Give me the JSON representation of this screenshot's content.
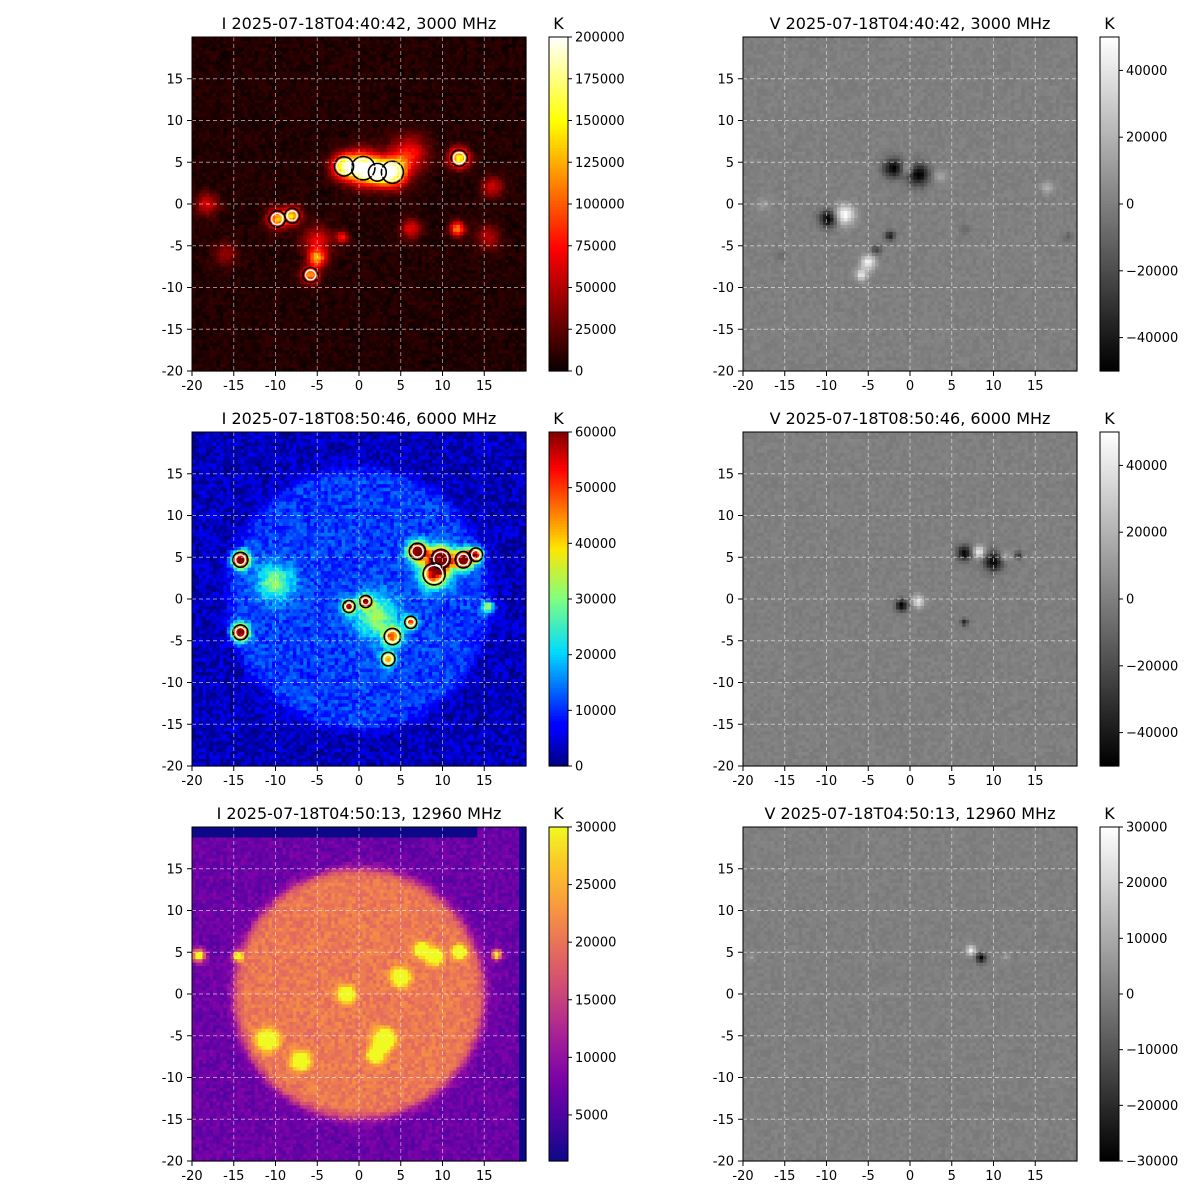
{
  "chart_data": [
    {
      "type": "heatmap",
      "title": "I 2025-07-18T04:40:42, 3000 MHz",
      "stokes": "I",
      "frequency_mhz": 3000,
      "colormap": "hot",
      "colorbar": {
        "label": "K",
        "min": 0,
        "max": 200000,
        "ticks": [
          "0",
          "25000",
          "50000",
          "75000",
          "100000",
          "125000",
          "150000",
          "175000",
          "200000"
        ]
      },
      "xlim": [
        -20,
        20
      ],
      "ylim": [
        -20,
        20
      ],
      "xticks": [
        "-20",
        "-15",
        "-10",
        "-5",
        "0",
        "5",
        "10",
        "15"
      ],
      "yticks": [
        "-20",
        "-15",
        "-10",
        "-5",
        "0",
        "5",
        "10",
        "15"
      ],
      "grid": true,
      "disk": false,
      "contours": true,
      "sources": [
        {
          "x": 0.5,
          "y": 4.3,
          "value": 190000,
          "size": 1.3
        },
        {
          "x": -1.8,
          "y": 4.5,
          "value": 150000,
          "size": 1.0
        },
        {
          "x": 4.0,
          "y": 3.8,
          "value": 180000,
          "size": 1.2
        },
        {
          "x": 2.2,
          "y": 3.8,
          "value": 140000,
          "size": 0.9
        },
        {
          "x": 12.0,
          "y": 5.5,
          "value": 150000,
          "size": 0.8
        },
        {
          "x": -9.8,
          "y": -1.8,
          "value": 120000,
          "size": 0.8
        },
        {
          "x": -8.0,
          "y": -1.4,
          "value": 130000,
          "size": 0.7
        },
        {
          "x": -5.0,
          "y": -6.5,
          "value": 110000,
          "size": 0.7
        },
        {
          "x": -5.8,
          "y": -8.5,
          "value": 115000,
          "size": 0.7
        },
        {
          "x": 11.8,
          "y": -3.0,
          "value": 110000,
          "size": 0.6
        },
        {
          "x": -2.0,
          "y": -4.0,
          "value": 70000,
          "size": 0.5
        },
        {
          "x": -18.2,
          "y": 0.0,
          "value": 55000,
          "size": 0.9
        },
        {
          "x": 6.0,
          "y": 6.0,
          "value": 70000,
          "size": 1.5
        },
        {
          "x": 16.0,
          "y": 2.0,
          "value": 50000,
          "size": 0.9
        },
        {
          "x": 6.2,
          "y": -3.0,
          "value": 60000,
          "size": 0.8
        },
        {
          "x": 15.5,
          "y": -4.0,
          "value": 45000,
          "size": 1.0
        },
        {
          "x": -5.0,
          "y": -4.5,
          "value": 60000,
          "size": 1.2
        },
        {
          "x": -16.0,
          "y": -6.0,
          "value": 35000,
          "size": 1.0
        }
      ]
    },
    {
      "type": "heatmap",
      "title": "V 2025-07-18T04:40:42, 3000 MHz",
      "stokes": "V",
      "frequency_mhz": 3000,
      "colormap": "gray",
      "colorbar": {
        "label": "K",
        "min": -50000,
        "max": 50000,
        "ticks": [
          "−40000",
          "−20000",
          "0",
          "20000",
          "40000"
        ]
      },
      "xlim": [
        -20,
        20
      ],
      "ylim": [
        -20,
        20
      ],
      "xticks": [
        "-20",
        "-15",
        "-10",
        "-5",
        "0",
        "5",
        "10",
        "15"
      ],
      "yticks": [
        "-20",
        "-15",
        "-10",
        "-5",
        "0",
        "5",
        "10",
        "15"
      ],
      "grid": true,
      "disk": false,
      "contours": false,
      "sources": [
        {
          "x": -2.0,
          "y": 4.3,
          "value": -50000,
          "size": 0.8
        },
        {
          "x": 1.0,
          "y": 3.5,
          "value": -50000,
          "size": 0.9
        },
        {
          "x": -0.3,
          "y": 4.2,
          "value": 25000,
          "size": 0.5
        },
        {
          "x": 3.5,
          "y": 3.3,
          "value": 15000,
          "size": 0.6
        },
        {
          "x": -9.8,
          "y": -1.8,
          "value": -50000,
          "size": 0.7
        },
        {
          "x": -7.8,
          "y": -1.3,
          "value": 50000,
          "size": 0.8
        },
        {
          "x": -5.0,
          "y": -7.0,
          "value": 45000,
          "size": 0.6
        },
        {
          "x": -5.8,
          "y": -8.5,
          "value": 40000,
          "size": 0.5
        },
        {
          "x": -2.4,
          "y": -3.8,
          "value": -40000,
          "size": 0.4
        },
        {
          "x": -4.0,
          "y": -5.5,
          "value": -25000,
          "size": 0.4
        },
        {
          "x": 16.5,
          "y": 2.0,
          "value": 20000,
          "size": 0.5
        },
        {
          "x": -17.5,
          "y": 0.0,
          "value": 10000,
          "size": 0.6
        },
        {
          "x": 19.0,
          "y": -4.0,
          "value": -12000,
          "size": 0.4
        },
        {
          "x": 6.5,
          "y": -3.0,
          "value": -10000,
          "size": 0.4
        },
        {
          "x": -15.5,
          "y": -6.0,
          "value": -9000,
          "size": 0.4
        }
      ]
    },
    {
      "type": "heatmap",
      "title": "I 2025-07-18T08:50:46, 6000 MHz",
      "stokes": "I",
      "frequency_mhz": 6000,
      "colormap": "jet",
      "colorbar": {
        "label": "K",
        "min": 0,
        "max": 60000,
        "ticks": [
          "0",
          "10000",
          "20000",
          "30000",
          "40000",
          "50000",
          "60000"
        ]
      },
      "xlim": [
        -20,
        20
      ],
      "ylim": [
        -20,
        20
      ],
      "xticks": [
        "-20",
        "-15",
        "-10",
        "-5",
        "0",
        "5",
        "10",
        "15"
      ],
      "yticks": [
        "-20",
        "-15",
        "-10",
        "-5",
        "0",
        "5",
        "10",
        "15"
      ],
      "grid": true,
      "disk": {
        "cx": 0,
        "cy": 0,
        "r": 15.7,
        "value": 11000,
        "background": 3000
      },
      "contours": true,
      "sources": [
        {
          "x": -14.2,
          "y": 4.7,
          "value": 60000,
          "size": 0.7
        },
        {
          "x": -14.2,
          "y": -4.0,
          "value": 60000,
          "size": 0.7
        },
        {
          "x": 7.0,
          "y": 5.7,
          "value": 60000,
          "size": 0.8
        },
        {
          "x": 9.8,
          "y": 4.8,
          "value": 60000,
          "size": 1.0
        },
        {
          "x": 12.5,
          "y": 4.7,
          "value": 55000,
          "size": 0.8
        },
        {
          "x": 14.0,
          "y": 5.3,
          "value": 45000,
          "size": 0.6
        },
        {
          "x": 9.0,
          "y": 3.0,
          "value": 40000,
          "size": 1.2
        },
        {
          "x": -1.2,
          "y": -0.9,
          "value": 55000,
          "size": 0.5
        },
        {
          "x": 0.8,
          "y": -0.3,
          "value": 45000,
          "size": 0.5
        },
        {
          "x": 6.2,
          "y": -2.8,
          "value": 40000,
          "size": 0.5
        },
        {
          "x": 4.0,
          "y": -4.5,
          "value": 35000,
          "size": 0.8
        },
        {
          "x": 3.5,
          "y": -7.2,
          "value": 35000,
          "size": 0.6
        },
        {
          "x": 15.5,
          "y": -1.0,
          "value": 28000,
          "size": 0.5
        },
        {
          "x": -10.0,
          "y": 2.0,
          "value": 20000,
          "size": 1.5
        },
        {
          "x": 2.0,
          "y": -2.0,
          "value": 20000,
          "size": 1.8
        }
      ]
    },
    {
      "type": "heatmap",
      "title": "V 2025-07-18T08:50:46, 6000 MHz",
      "stokes": "V",
      "frequency_mhz": 6000,
      "colormap": "gray",
      "colorbar": {
        "label": "K",
        "min": -50000,
        "max": 50000,
        "ticks": [
          "−40000",
          "−20000",
          "0",
          "20000",
          "40000"
        ]
      },
      "xlim": [
        -20,
        20
      ],
      "ylim": [
        -20,
        20
      ],
      "xticks": [
        "-20",
        "-15",
        "-10",
        "-5",
        "0",
        "5",
        "10",
        "15"
      ],
      "yticks": [
        "-20",
        "-15",
        "-10",
        "-5",
        "0",
        "5",
        "10",
        "15"
      ],
      "grid": true,
      "disk": false,
      "contours": false,
      "sources": [
        {
          "x": 6.5,
          "y": 5.5,
          "value": -50000,
          "size": 0.6
        },
        {
          "x": 8.3,
          "y": 5.6,
          "value": 45000,
          "size": 0.5
        },
        {
          "x": 10.0,
          "y": 4.5,
          "value": -50000,
          "size": 0.8
        },
        {
          "x": 11.3,
          "y": 5.1,
          "value": 20000,
          "size": 0.5
        },
        {
          "x": 13.0,
          "y": 5.2,
          "value": -30000,
          "size": 0.3
        },
        {
          "x": -1.0,
          "y": -0.8,
          "value": -50000,
          "size": 0.5
        },
        {
          "x": 1.0,
          "y": -0.3,
          "value": 40000,
          "size": 0.5
        },
        {
          "x": 6.5,
          "y": -2.8,
          "value": -35000,
          "size": 0.3
        }
      ]
    },
    {
      "type": "heatmap",
      "title": "I 2025-07-18T04:50:13, 12960 MHz",
      "stokes": "I",
      "frequency_mhz": 12960,
      "colormap": "plasma",
      "colorbar": {
        "label": "K",
        "min": 1000,
        "max": 30000,
        "ticks": [
          "5000",
          "10000",
          "15000",
          "20000",
          "25000",
          "30000"
        ]
      },
      "xlim": [
        -20,
        20
      ],
      "ylim": [
        -20,
        20
      ],
      "xticks": [
        "-20",
        "-15",
        "-10",
        "-5",
        "0",
        "5",
        "10",
        "15"
      ],
      "yticks": [
        "-20",
        "-15",
        "-10",
        "-5",
        "0",
        "5",
        "10",
        "15"
      ],
      "grid": true,
      "disk": {
        "cx": 0,
        "cy": 0,
        "r": 15.0,
        "value": 20500,
        "background": 7000
      },
      "contours": false,
      "sources": [
        {
          "x": -19.2,
          "y": 4.6,
          "value": 30000,
          "size": 0.5
        },
        {
          "x": -14.5,
          "y": 4.5,
          "value": 28000,
          "size": 0.4
        },
        {
          "x": 7.5,
          "y": 5.3,
          "value": 30000,
          "size": 0.5
        },
        {
          "x": 9.0,
          "y": 4.5,
          "value": 30000,
          "size": 0.6
        },
        {
          "x": 12.0,
          "y": 5.0,
          "value": 30000,
          "size": 0.5
        },
        {
          "x": 16.5,
          "y": 4.7,
          "value": 27000,
          "size": 0.4
        },
        {
          "x": -1.5,
          "y": 0.0,
          "value": 26000,
          "size": 0.6
        },
        {
          "x": 3.0,
          "y": -5.5,
          "value": 27000,
          "size": 0.8
        },
        {
          "x": 2.0,
          "y": -7.3,
          "value": 26000,
          "size": 0.6
        },
        {
          "x": -11.0,
          "y": -5.5,
          "value": 25000,
          "size": 0.8
        },
        {
          "x": -7.0,
          "y": -8.0,
          "value": 25000,
          "size": 0.7
        },
        {
          "x": 5.0,
          "y": 2.0,
          "value": 24000,
          "size": 0.7
        }
      ]
    },
    {
      "type": "heatmap",
      "title": "V 2025-07-18T04:50:13, 12960 MHz",
      "stokes": "V",
      "frequency_mhz": 12960,
      "colormap": "gray",
      "colorbar": {
        "label": "K",
        "min": -30000,
        "max": 30000,
        "ticks": [
          "−30000",
          "−20000",
          "−10000",
          "0",
          "10000",
          "20000",
          "30000"
        ]
      },
      "xlim": [
        -20,
        20
      ],
      "ylim": [
        -20,
        20
      ],
      "xticks": [
        "-20",
        "-15",
        "-10",
        "-5",
        "0",
        "5",
        "10",
        "15"
      ],
      "yticks": [
        "-20",
        "-15",
        "-10",
        "-5",
        "0",
        "5",
        "10",
        "15"
      ],
      "grid": true,
      "disk": false,
      "contours": false,
      "sources": [
        {
          "x": 7.3,
          "y": 5.2,
          "value": 25000,
          "size": 0.4
        },
        {
          "x": 8.5,
          "y": 4.3,
          "value": -30000,
          "size": 0.4
        },
        {
          "x": 11.5,
          "y": 4.5,
          "value": 8000,
          "size": 0.3
        },
        {
          "x": -19.0,
          "y": 4.5,
          "value": 6000,
          "size": 0.3
        }
      ]
    }
  ]
}
